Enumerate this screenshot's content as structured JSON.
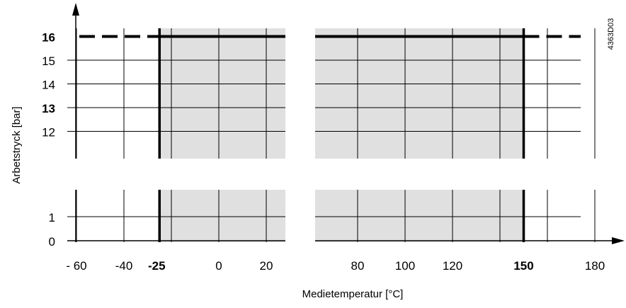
{
  "chart_data": {
    "type": "area",
    "title": "",
    "xlabel": "Medietemperatur [°C]",
    "ylabel": "Arbetstryck [bar]",
    "doc_code": "4363D03",
    "x_axis_broken": true,
    "y_axis_broken": true,
    "x_segments": [
      {
        "range": [
          -60,
          25
        ],
        "ticks": [
          {
            "value": -60,
            "label": "- 60",
            "bold": false
          },
          {
            "value": -40,
            "label": "-40",
            "bold": false
          },
          {
            "value": -25,
            "label": "-25",
            "bold": true
          },
          {
            "value": 0,
            "label": "0",
            "bold": false
          },
          {
            "value": 20,
            "label": "20",
            "bold": false
          }
        ],
        "gridlines": [
          -60,
          -40,
          -20,
          0,
          20
        ]
      },
      {
        "range": [
          70,
          185
        ],
        "ticks": [
          {
            "value": 80,
            "label": "80",
            "bold": false
          },
          {
            "value": 100,
            "label": "100",
            "bold": false
          },
          {
            "value": 120,
            "label": "120",
            "bold": false
          },
          {
            "value": 150,
            "label": "150",
            "bold": true
          },
          {
            "value": 180,
            "label": "180",
            "bold": false
          }
        ],
        "gridlines": [
          80,
          100,
          120,
          140,
          160,
          180
        ]
      }
    ],
    "y_segments": [
      {
        "range": [
          10,
          16.5
        ],
        "ticks": [
          {
            "value": 16,
            "label": "16",
            "bold": true
          },
          {
            "value": 15,
            "label": "15",
            "bold": false
          },
          {
            "value": 14,
            "label": "14",
            "bold": false
          },
          {
            "value": 13,
            "label": "13",
            "bold": true
          },
          {
            "value": 12,
            "label": "12",
            "bold": false
          }
        ]
      },
      {
        "range": [
          0,
          2
        ],
        "ticks": [
          {
            "value": 1,
            "label": "1",
            "bold": false
          },
          {
            "value": 0,
            "label": "0",
            "bold": false
          }
        ]
      }
    ],
    "shaded_region": {
      "x": [
        -25,
        150
      ],
      "y": [
        0,
        16
      ],
      "color": "#e0e0e0"
    },
    "boundary_lines": [
      -25,
      150
    ],
    "max_pressure": {
      "value": 16,
      "solid_x": [
        -25,
        150
      ],
      "dashed_x": [
        -60,
        185
      ]
    }
  }
}
